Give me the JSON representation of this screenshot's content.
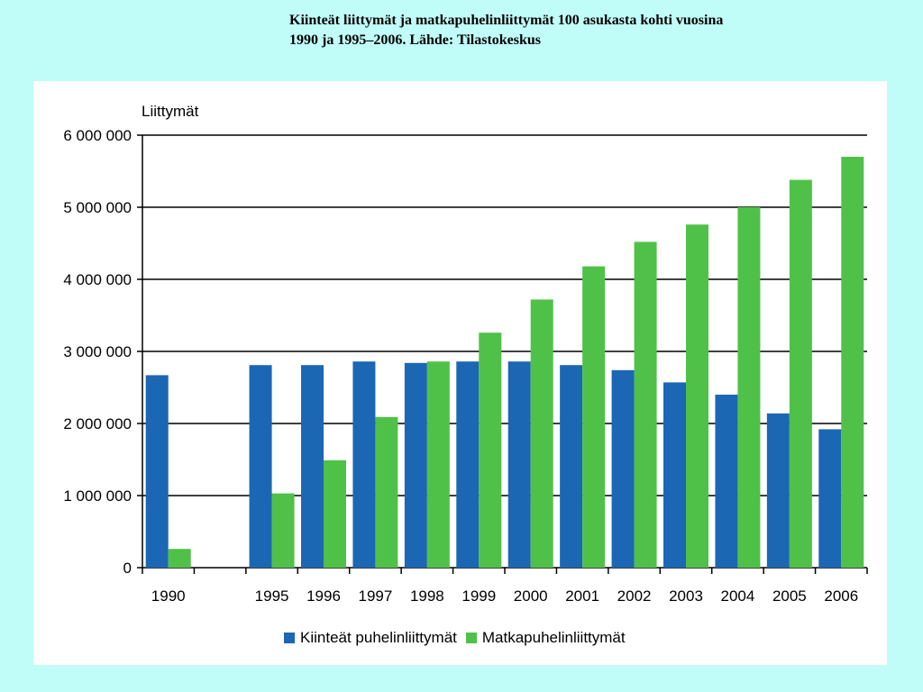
{
  "caption": {
    "line1": "Kiinteät liittymät ja matkapuhelinliittymät 100 asukasta kohti vuosina",
    "line2": "1990 ja 1995–2006. Lähde: Tilastokeskus"
  },
  "chart_data": {
    "type": "bar",
    "ylabel": "Liittymät",
    "ylim": [
      0,
      6000000
    ],
    "yticks": [
      {
        "value": 0,
        "label": "0"
      },
      {
        "value": 1000000,
        "label": "1 000 000"
      },
      {
        "value": 2000000,
        "label": "2 000 000"
      },
      {
        "value": 3000000,
        "label": "3 000 000"
      },
      {
        "value": 4000000,
        "label": "4 000 000"
      },
      {
        "value": 5000000,
        "label": "5 000 000"
      },
      {
        "value": 6000000,
        "label": "6 000 000"
      }
    ],
    "grid": true,
    "legend_position": "bottom",
    "categories": [
      "1990",
      "",
      "1995",
      "1996",
      "1997",
      "1998",
      "1999",
      "2000",
      "2001",
      "2002",
      "2003",
      "2004",
      "2005",
      "2006"
    ],
    "series": [
      {
        "name": "Kiinteät puhelinliittymät",
        "color": "#1b67b4",
        "values": [
          2670000,
          null,
          2810000,
          2810000,
          2860000,
          2840000,
          2860000,
          2860000,
          2810000,
          2740000,
          2570000,
          2400000,
          2140000,
          1920000
        ]
      },
      {
        "name": "Matkapuhelinliittymät",
        "color": "#50c148",
        "values": [
          260000,
          null,
          1030000,
          1490000,
          2090000,
          2860000,
          3260000,
          3720000,
          4180000,
          4520000,
          4760000,
          5000000,
          5380000,
          5700000
        ]
      }
    ]
  }
}
